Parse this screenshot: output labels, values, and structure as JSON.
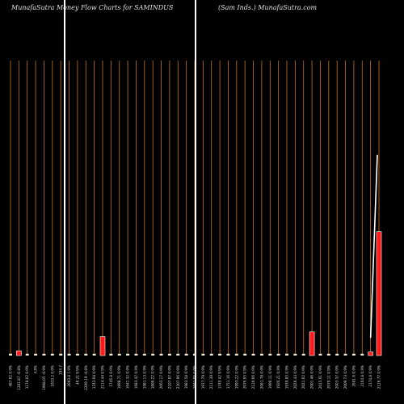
{
  "title_left": "MunafaSutra  Money Flow  Charts for SAMINDUS",
  "title_right": "(Sam Inds.) MunafaSutra.com",
  "colors": {
    "background": "#000000",
    "grid": "#c8731c",
    "bar_red": "#ff1a1a",
    "bar_neutral": "#f2f2e8",
    "line": "#ffffff"
  },
  "chart_data": {
    "type": "bar",
    "title": "MunafaSutra  Money Flow  Charts for SAMINDUS",
    "subtitle": "(Sam Inds.) MunafaSutra.com",
    "categories": [
      "487.62 0.9%",
      "1281.87 -0.8%",
      "1178.02 0.9%",
      "4.8%",
      "1908.05 -0.9%",
      "1933.2 0.9%",
      "194.7",
      "2003.8 1.9%",
      "46.21 0.9%",
      "2209.19 -0.8%",
      "1743.68 0.9%",
      "2114.44 0.9%",
      "1745.8 0.9%",
      "1898.71 0.9%",
      "1641.32 0.9%",
      "1683.47 0.9%",
      "1981.13 0.9%",
      "1806.22 0.9%",
      "2063.17 0.9%",
      "2107.07 0.9%",
      "2207.96 0.9%",
      "1983.58 0.9%",
      "1941.05 0.9%",
      "1977.79 0.9%",
      "2111.39 0.9%",
      "1749.42 0.9%",
      "1751.16 0.9%",
      "1993.22 0.9%",
      "2076.95 0.9%",
      "2120.66 0.9%",
      "2081.78 0.9%",
      "1990.11 0.9%",
      "1920.21 0.9%",
      "1939.85 0.9%",
      "2026.44 0.9%",
      "2021.62 0.9%",
      "2001.46 0.9%",
      "2015.61 0.9%",
      "2079.11 0.9%",
      "2003.57 0.9%",
      "2009.73 0.9%",
      "2001.6 0.9%",
      "2164.8 0.9%",
      "2174.8 0.9%",
      "2126.77 0.9%"
    ],
    "values": [
      1.5,
      4,
      1.5,
      1.5,
      1.5,
      1.5,
      1.5,
      1.5,
      1.5,
      1.5,
      1.5,
      16,
      1.5,
      1.5,
      1.5,
      1.5,
      1.5,
      1.5,
      1.5,
      1.5,
      1.5,
      1.5,
      1.5,
      1.5,
      1.5,
      1.5,
      1.5,
      1.5,
      1.5,
      1.5,
      1.5,
      1.5,
      1.5,
      1.5,
      1.5,
      1.5,
      20,
      1.5,
      1.5,
      1.5,
      1.5,
      1.5,
      1.5,
      3,
      105
    ],
    "colors": [
      "neutral",
      "red",
      "neutral",
      "neutral",
      "neutral",
      "neutral",
      "neutral",
      "neutral",
      "neutral",
      "neutral",
      "neutral",
      "red",
      "neutral",
      "neutral",
      "neutral",
      "neutral",
      "neutral",
      "neutral",
      "neutral",
      "neutral",
      "neutral",
      "neutral",
      "neutral",
      "neutral",
      "neutral",
      "neutral",
      "neutral",
      "neutral",
      "neutral",
      "neutral",
      "neutral",
      "neutral",
      "neutral",
      "neutral",
      "neutral",
      "neutral",
      "red",
      "neutral",
      "neutral",
      "neutral",
      "neutral",
      "neutral",
      "neutral",
      "red",
      "red"
    ],
    "line": {
      "values": [
        15,
        170
      ]
    },
    "ylim": [
      0,
      250
    ],
    "grid": true
  }
}
